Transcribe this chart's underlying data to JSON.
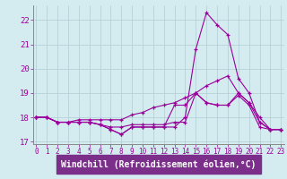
{
  "background_color": "#d4ecf0",
  "grid_color": "#b0ccd4",
  "line_color": "#990099",
  "xlabel_color": "#ffffff",
  "xlabel_bg": "#7b2f8a",
  "marker": "+",
  "ytick_fontsize": 6.5,
  "xtick_fontsize": 5.5,
  "xlabel_fontsize": 7,
  "yticks": [
    17,
    18,
    19,
    20,
    21,
    22
  ],
  "xticks": [
    0,
    1,
    2,
    3,
    4,
    5,
    6,
    7,
    8,
    9,
    10,
    11,
    12,
    13,
    14,
    15,
    16,
    17,
    18,
    19,
    20,
    21,
    22,
    23
  ],
  "xlim": [
    -0.3,
    23.3
  ],
  "ylim": [
    16.9,
    22.6
  ],
  "series": [
    [
      18.0,
      18.0,
      17.8,
      17.8,
      17.8,
      17.8,
      17.7,
      17.5,
      17.3,
      17.6,
      17.6,
      17.6,
      17.6,
      18.5,
      18.5,
      19.0,
      18.6,
      18.5,
      18.5,
      18.9,
      18.5,
      17.6,
      17.5,
      17.5
    ],
    [
      18.0,
      18.0,
      17.8,
      17.8,
      17.8,
      17.8,
      17.7,
      17.6,
      17.6,
      17.7,
      17.7,
      17.7,
      17.7,
      17.8,
      17.8,
      19.0,
      18.6,
      18.5,
      18.5,
      19.0,
      18.6,
      17.8,
      17.5,
      17.5
    ],
    [
      18.0,
      18.0,
      17.8,
      17.8,
      17.9,
      17.9,
      17.9,
      17.9,
      17.9,
      18.1,
      18.2,
      18.4,
      18.5,
      18.6,
      18.8,
      19.0,
      19.3,
      19.5,
      19.7,
      19.0,
      18.6,
      18.0,
      17.5,
      17.5
    ],
    [
      18.0,
      18.0,
      17.8,
      17.8,
      17.8,
      17.8,
      17.7,
      17.5,
      17.3,
      17.6,
      17.6,
      17.6,
      17.6,
      17.6,
      18.0,
      20.8,
      22.3,
      21.8,
      21.4,
      19.6,
      19.0,
      17.8,
      17.5,
      17.5
    ]
  ]
}
